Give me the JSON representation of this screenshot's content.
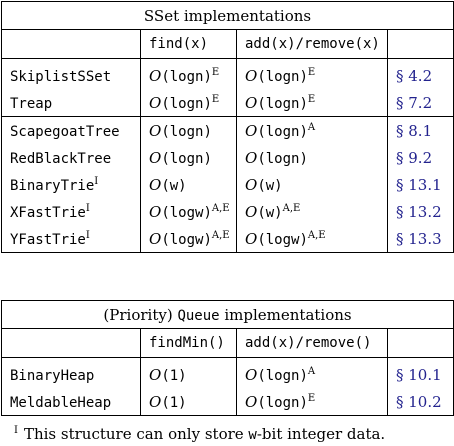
{
  "sset": {
    "title": "SSet implementations",
    "headers": [
      "",
      "find(x)",
      "add(x)/remove(x)",
      ""
    ],
    "rows": [
      {
        "name": "SkiplistSSet",
        "name_sup": "",
        "find_a": "O",
        "find_b": "(logn)",
        "find_sup": "E",
        "add_a": "O",
        "add_b": "(logn)",
        "add_sup": "E",
        "ref": "§ 4.2"
      },
      {
        "name": "Treap",
        "name_sup": "",
        "find_a": "O",
        "find_b": "(logn)",
        "find_sup": "E",
        "add_a": "O",
        "add_b": "(logn)",
        "add_sup": "E",
        "ref": "§ 7.2"
      },
      {
        "name": "ScapegoatTree",
        "name_sup": "",
        "find_a": "O",
        "find_b": "(logn)",
        "find_sup": "",
        "add_a": "O",
        "add_b": "(logn)",
        "add_sup": "A",
        "ref": "§ 8.1"
      },
      {
        "name": "RedBlackTree",
        "name_sup": "",
        "find_a": "O",
        "find_b": "(logn)",
        "find_sup": "",
        "add_a": "O",
        "add_b": "(logn)",
        "add_sup": "",
        "ref": "§ 9.2"
      },
      {
        "name": "BinaryTrie",
        "name_sup": "I",
        "find_a": "O",
        "find_b": "(w)",
        "find_sup": "",
        "add_a": "O",
        "add_b": "(w)",
        "add_sup": "",
        "ref": "§ 13.1"
      },
      {
        "name": "XFastTrie",
        "name_sup": "I",
        "find_a": "O",
        "find_b": "(logw)",
        "find_sup": "A,E",
        "add_a": "O",
        "add_b": "(w)",
        "add_sup": "A,E",
        "ref": "§ 13.2"
      },
      {
        "name": "YFastTrie",
        "name_sup": "I",
        "find_a": "O",
        "find_b": "(logw)",
        "find_sup": "A,E",
        "add_a": "O",
        "add_b": "(logw)",
        "add_sup": "A,E",
        "ref": "§ 13.3"
      }
    ]
  },
  "pq": {
    "title_a": "(Priority) ",
    "title_mono": "Queue",
    "title_b": " implementations",
    "headers": [
      "",
      "findMin()",
      "add(x)/remove()",
      ""
    ],
    "rows": [
      {
        "name": "BinaryHeap",
        "find_a": "O",
        "find_b": "(1)",
        "find_sup": "",
        "add_a": "O",
        "add_b": "(logn)",
        "add_sup": "A",
        "ref": "§ 10.1"
      },
      {
        "name": "MeldableHeap",
        "find_a": "O",
        "find_b": "(1)",
        "find_sup": "",
        "add_a": "O",
        "add_b": "(logn)",
        "add_sup": "E",
        "ref": "§ 10.2"
      }
    ]
  },
  "footnote": {
    "mark": "I",
    "text_a": "This structure can only store ",
    "mono": "w",
    "text_b": "-bit integer data."
  }
}
